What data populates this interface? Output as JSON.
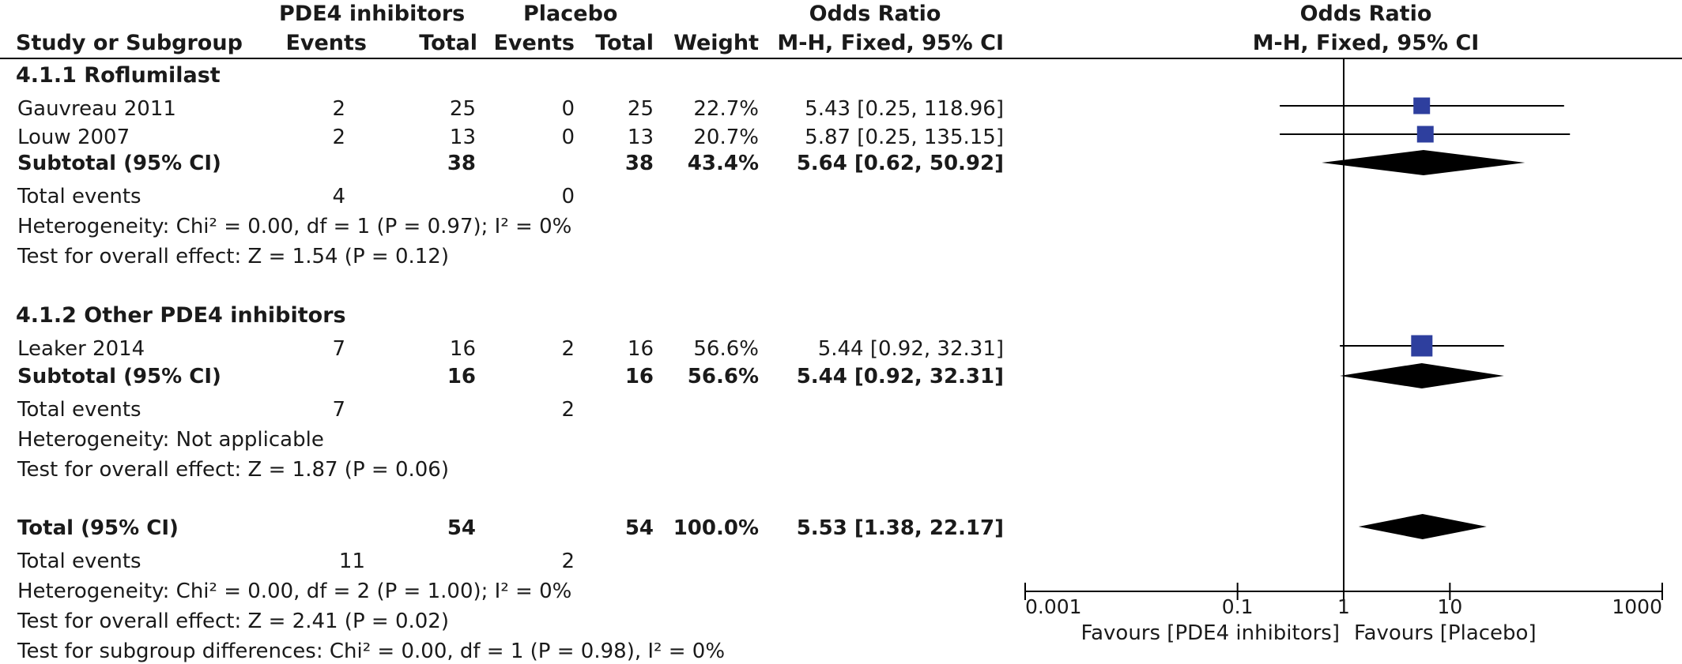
{
  "headers": {
    "study_col": "Study or Subgroup",
    "pde4_group": "PDE4 inhibitors",
    "placebo_group": "Placebo",
    "events": "Events",
    "total": "Total",
    "weight": "Weight",
    "or_title": "Odds Ratio",
    "or_method": "M-H, Fixed, 95% CI",
    "plot_title": "Odds Ratio",
    "plot_method": "M-H, Fixed, 95% CI"
  },
  "subgroups": [
    {
      "title": "4.1.1 Roflumilast",
      "studies": [
        {
          "name": "Gauvreau 2011",
          "e1": "2",
          "t1": "25",
          "e2": "0",
          "t2": "25",
          "weight": "22.7%",
          "ci": "5.43 [0.25, 118.96]"
        },
        {
          "name": "Louw 2007",
          "e1": "2",
          "t1": "13",
          "e2": "0",
          "t2": "13",
          "weight": "20.7%",
          "ci": "5.87 [0.25, 135.15]"
        }
      ],
      "subtotal": {
        "label": "Subtotal (95% CI)",
        "t1": "38",
        "t2": "38",
        "weight": "43.4%",
        "ci": "5.64 [0.62, 50.92]"
      },
      "events": {
        "label": "Total events",
        "e1": "4",
        "e2": "0"
      },
      "heterogeneity": "Heterogeneity: Chi² = 0.00, df = 1 (P = 0.97); I² = 0%",
      "overall": "Test for overall effect: Z = 1.54 (P = 0.12)"
    },
    {
      "title": "4.1.2 Other PDE4 inhibitors",
      "studies": [
        {
          "name": "Leaker 2014",
          "e1": "7",
          "t1": "16",
          "e2": "2",
          "t2": "16",
          "weight": "56.6%",
          "ci": "5.44 [0.92, 32.31]"
        }
      ],
      "subtotal": {
        "label": "Subtotal (95% CI)",
        "t1": "16",
        "t2": "16",
        "weight": "56.6%",
        "ci": "5.44 [0.92, 32.31]"
      },
      "events": {
        "label": "Total events",
        "e1": "7",
        "e2": "2"
      },
      "heterogeneity": "Heterogeneity: Not applicable",
      "overall": "Test for overall effect: Z = 1.87 (P = 0.06)"
    }
  ],
  "total": {
    "label": "Total (95% CI)",
    "t1": "54",
    "t2": "54",
    "weight": "100.0%",
    "ci": "5.53 [1.38, 22.17]"
  },
  "total_events": {
    "label": "Total events",
    "e1": "11",
    "e2": "2"
  },
  "total_heterogeneity": "Heterogeneity: Chi² = 0.00, df = 2 (P = 1.00); I² = 0%",
  "total_overall": "Test for overall effect: Z = 2.41 (P = 0.02)",
  "subgroup_diff": "Test for subgroup differences: Chi² = 0.00, df = 1 (P = 0.98), I² = 0%",
  "axis": {
    "ticks": [
      "0.001",
      "0.1",
      "1",
      "10",
      "1000"
    ],
    "favours_left": "Favours [PDE4 inhibitors]",
    "favours_right": "Favours [Placebo]"
  },
  "colors": {
    "square": "#2e3f9e",
    "diamond": "#000000",
    "line": "#000000"
  },
  "chart_data": {
    "type": "forest",
    "scale": "log",
    "xlim": [
      0.001,
      1000
    ],
    "reference_line": 1,
    "studies": [
      {
        "name": "Gauvreau 2011",
        "or": 5.43,
        "lower": 0.25,
        "upper": 118.96,
        "weight": 22.7
      },
      {
        "name": "Louw 2007",
        "or": 5.87,
        "lower": 0.25,
        "upper": 135.15,
        "weight": 20.7
      },
      {
        "name": "Leaker 2014",
        "or": 5.44,
        "lower": 0.92,
        "upper": 32.31,
        "weight": 56.6
      }
    ],
    "pooled": [
      {
        "name": "Subtotal (95% CI) 4.1.1",
        "or": 5.64,
        "lower": 0.62,
        "upper": 50.92
      },
      {
        "name": "Subtotal (95% CI) 4.1.2",
        "or": 5.44,
        "lower": 0.92,
        "upper": 32.31
      },
      {
        "name": "Total (95% CI)",
        "or": 5.53,
        "lower": 1.38,
        "upper": 22.17
      }
    ],
    "ticks": [
      0.001,
      0.1,
      1,
      10,
      1000
    ]
  }
}
